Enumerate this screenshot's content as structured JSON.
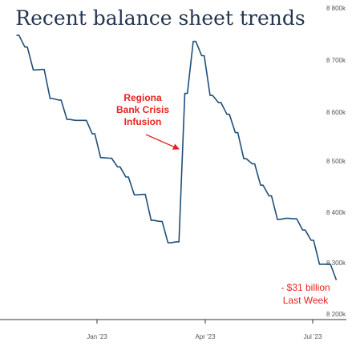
{
  "chart_data": {
    "type": "line",
    "title": "Recent balance sheet trends",
    "xlabel": "",
    "ylabel": "",
    "x_ticks": [
      "Jan '23",
      "Apr '23",
      "Jul '23"
    ],
    "y_ticks": [
      "8 800k",
      "8 700k",
      "8 600k",
      "8 500k",
      "8 400k",
      "8 300k",
      "8 200k"
    ],
    "ylim": [
      8200,
      8800
    ],
    "grid": false,
    "legend": "none",
    "series": [
      {
        "color": "#1f4e79",
        "x": [
          "2022-10-26",
          "2022-11-02",
          "2022-11-09",
          "2022-11-16",
          "2022-11-23",
          "2022-11-30",
          "2022-12-07",
          "2022-12-14",
          "2022-12-21",
          "2022-12-28",
          "2023-01-04",
          "2023-01-11",
          "2023-01-18",
          "2023-01-25",
          "2023-02-01",
          "2023-02-08",
          "2023-02-15",
          "2023-02-22",
          "2023-03-01",
          "2023-03-08",
          "2023-03-15",
          "2023-03-22",
          "2023-03-29",
          "2023-04-05",
          "2023-04-12",
          "2023-04-19",
          "2023-04-26",
          "2023-05-03",
          "2023-05-10",
          "2023-05-17",
          "2023-05-24",
          "2023-05-31",
          "2023-06-07",
          "2023-06-14",
          "2023-06-21",
          "2023-06-28",
          "2023-07-05",
          "2023-07-12",
          "2023-07-19"
        ],
        "values": [
          8745,
          8722,
          8677,
          8678,
          8621,
          8618,
          8580,
          8578,
          8578,
          8552,
          8505,
          8504,
          8487,
          8467,
          8432,
          8433,
          8382,
          8380,
          8338,
          8340,
          8631,
          8733,
          8705,
          8627,
          8613,
          8590,
          8554,
          8503,
          8493,
          8451,
          8430,
          8384,
          8386,
          8385,
          8363,
          8343,
          8296,
          8296,
          8265
        ]
      }
    ],
    "annotations": {
      "crisis_line1": "Regiona",
      "crisis_line2": "Bank Crisis",
      "crisis_line3": "Infusion",
      "last_week_line1": "- $31 billion",
      "last_week_line2": "Last Week"
    },
    "colors": {
      "line": "#1f4e79",
      "annotation": "#e8231f",
      "title": "#243650",
      "axis": "#333333"
    }
  }
}
